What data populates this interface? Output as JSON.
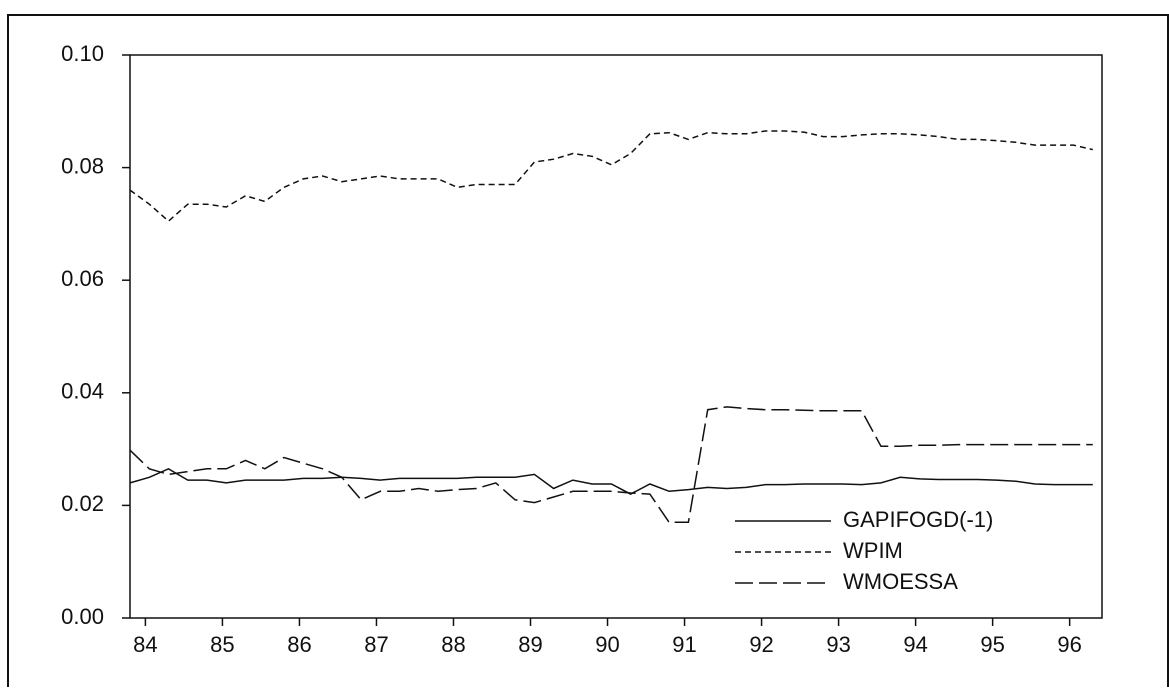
{
  "chart_data": {
    "type": "line",
    "x": [
      83.8,
      84.05,
      84.3,
      84.55,
      84.8,
      85.05,
      85.3,
      85.55,
      85.8,
      86.05,
      86.3,
      86.55,
      86.8,
      87.05,
      87.3,
      87.55,
      87.8,
      88.05,
      88.3,
      88.55,
      88.8,
      89.05,
      89.3,
      89.55,
      89.8,
      90.05,
      90.3,
      90.55,
      90.8,
      91.05,
      91.3,
      91.55,
      91.8,
      92.05,
      92.3,
      92.55,
      92.8,
      93.05,
      93.3,
      93.55,
      93.8,
      94.05,
      94.3,
      94.55,
      94.8,
      95.05,
      95.3,
      95.55,
      95.8,
      96.05,
      96.3
    ],
    "series": [
      {
        "name": "GAPIFOGD(-1)",
        "color": "#111111",
        "dash": "solid",
        "values": [
          0.024,
          0.025,
          0.0265,
          0.0245,
          0.0245,
          0.024,
          0.0245,
          0.0245,
          0.0245,
          0.0248,
          0.0248,
          0.025,
          0.0248,
          0.0245,
          0.0248,
          0.0248,
          0.0248,
          0.0248,
          0.025,
          0.025,
          0.025,
          0.0255,
          0.023,
          0.0245,
          0.0238,
          0.0238,
          0.022,
          0.0238,
          0.0225,
          0.0228,
          0.0232,
          0.023,
          0.0232,
          0.0237,
          0.0237,
          0.0238,
          0.0238,
          0.0238,
          0.0237,
          0.024,
          0.025,
          0.0247,
          0.0246,
          0.0246,
          0.0246,
          0.0245,
          0.0243,
          0.0238,
          0.0237,
          0.0237,
          0.0237
        ]
      },
      {
        "name": "WPIM",
        "color": "#111111",
        "dash": "short",
        "values": [
          0.076,
          0.0735,
          0.0705,
          0.0735,
          0.0735,
          0.073,
          0.075,
          0.074,
          0.0765,
          0.078,
          0.0785,
          0.0775,
          0.078,
          0.0785,
          0.078,
          0.078,
          0.078,
          0.0765,
          0.077,
          0.077,
          0.077,
          0.081,
          0.0815,
          0.0825,
          0.082,
          0.0805,
          0.0825,
          0.086,
          0.0862,
          0.085,
          0.0862,
          0.086,
          0.086,
          0.0865,
          0.0865,
          0.0863,
          0.0855,
          0.0855,
          0.0858,
          0.086,
          0.086,
          0.0858,
          0.0855,
          0.085,
          0.085,
          0.0848,
          0.0845,
          0.084,
          0.084,
          0.084,
          0.0832
        ]
      },
      {
        "name": "WMOESSA",
        "color": "#111111",
        "dash": "long",
        "values": [
          0.0298,
          0.0265,
          0.0255,
          0.026,
          0.0265,
          0.0265,
          0.028,
          0.0265,
          0.0285,
          0.0275,
          0.0265,
          0.025,
          0.021,
          0.0225,
          0.0225,
          0.023,
          0.0225,
          0.0228,
          0.023,
          0.024,
          0.021,
          0.0205,
          0.0215,
          0.0225,
          0.0225,
          0.0225,
          0.0222,
          0.022,
          0.017,
          0.017,
          0.037,
          0.0375,
          0.0372,
          0.037,
          0.037,
          0.0369,
          0.0368,
          0.0368,
          0.0368,
          0.0305,
          0.0305,
          0.0307,
          0.0307,
          0.0308,
          0.0308,
          0.0308,
          0.0308,
          0.0308,
          0.0308,
          0.0308,
          0.0308
        ]
      }
    ],
    "xlim": [
      83.8,
      96.42
    ],
    "xticks": [
      84,
      85,
      86,
      87,
      88,
      89,
      90,
      91,
      92,
      93,
      94,
      95,
      96
    ],
    "ylim": [
      0,
      0.1
    ],
    "yticks": [
      {
        "value": 0,
        "label": "0.00"
      },
      0.02,
      0.04,
      0.06,
      0.08,
      {
        "value": 0.1,
        "label": "0.10"
      }
    ],
    "legend": "lower right",
    "grid": false
  }
}
